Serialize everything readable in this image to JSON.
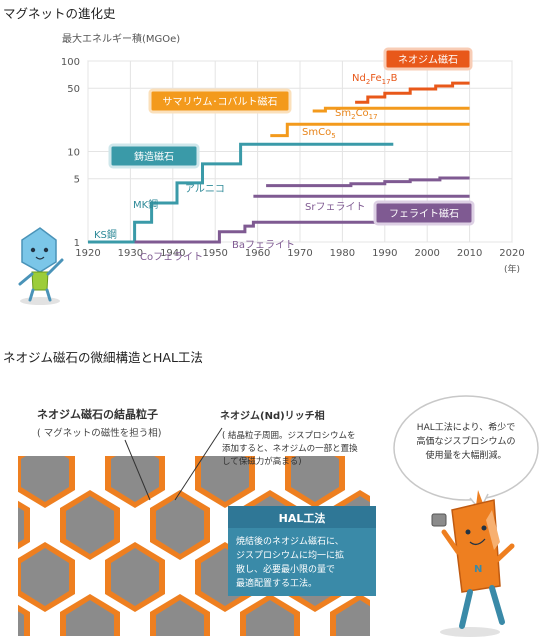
{
  "header": {
    "title": "マグネットの進化史",
    "section2_title": "ネオジム磁石の微細構造とHAL工法"
  },
  "chart_data": {
    "type": "line",
    "ylabel": "最大エネルギー積(MGOe)",
    "xunit": "(年)",
    "yscale": "log",
    "xlim": [
      1920,
      2020
    ],
    "ylim": [
      1,
      100
    ],
    "x_ticks": [
      "1920",
      "1930",
      "1940",
      "1950",
      "1960",
      "1970",
      "1980",
      "1990",
      "2000",
      "2010",
      "2020"
    ],
    "y_ticks": [
      "1",
      "5",
      "10",
      "50",
      "100"
    ],
    "grid": true,
    "legend_boxes": [
      {
        "label": "鋳造磁石",
        "color": "#3a9aa8"
      },
      {
        "label": "サマリウム･コバルト磁石",
        "color": "#f39a1c"
      },
      {
        "label": "ネオジム磁石",
        "color": "#e8581a"
      },
      {
        "label": "フェライト磁石",
        "color": "#7f5a92"
      }
    ],
    "series": [
      {
        "name": "KS鋼",
        "color": "#3a9aa8",
        "points": [
          [
            1920,
            1
          ],
          [
            1931,
            1
          ],
          [
            1931,
            1.65
          ],
          [
            1935,
            1.65
          ],
          [
            1935,
            2.7
          ],
          [
            1941,
            2.7
          ],
          [
            1941,
            4.5
          ],
          [
            1947,
            4.5
          ],
          [
            1947,
            7.3
          ],
          [
            1956,
            7.3
          ],
          [
            1956,
            12
          ],
          [
            1992,
            12
          ]
        ]
      },
      {
        "name": "Coフェライト",
        "color": "#7f5a92",
        "points": [
          [
            1931,
            1
          ],
          [
            1951,
            1
          ],
          [
            1951,
            1.3
          ],
          [
            1957,
            1.3
          ],
          [
            1957,
            1.5
          ],
          [
            1959,
            1.5
          ],
          [
            1959,
            1.65
          ],
          [
            2010,
            1.65
          ]
        ]
      },
      {
        "name": "Baフェライト",
        "color": "#7f5a92",
        "points": [
          [
            1959,
            3.2
          ],
          [
            2010,
            3.2
          ]
        ]
      },
      {
        "name": "Srフェライト",
        "color": "#7f5a92",
        "points": [
          [
            1962,
            4.2
          ],
          [
            1982,
            4.2
          ],
          [
            1982,
            4.4
          ],
          [
            1990,
            4.4
          ],
          [
            1990,
            4.65
          ],
          [
            1996,
            4.65
          ],
          [
            1996,
            4.85
          ],
          [
            2003,
            4.85
          ],
          [
            2003,
            5.1
          ],
          [
            2010,
            5.1
          ]
        ]
      },
      {
        "name": "SmCo5",
        "color": "#f39a1c",
        "points": [
          [
            1963,
            15
          ],
          [
            1967,
            15
          ],
          [
            1967,
            20
          ],
          [
            2010,
            20
          ]
        ]
      },
      {
        "name": "Sm2Co17",
        "color": "#f39a1c",
        "points": [
          [
            1973,
            28
          ],
          [
            1976,
            28
          ],
          [
            1976,
            30
          ],
          [
            2010,
            30
          ]
        ]
      },
      {
        "name": "Nd2Fe17B",
        "color": "#e8581a",
        "points": [
          [
            1983,
            35
          ],
          [
            1986,
            35
          ],
          [
            1986,
            40
          ],
          [
            1990,
            40
          ],
          [
            1990,
            44
          ],
          [
            1996,
            44
          ],
          [
            1996,
            49
          ],
          [
            2002,
            49
          ],
          [
            2002,
            53
          ],
          [
            2006,
            53
          ],
          [
            2006,
            57
          ],
          [
            2010,
            57
          ]
        ]
      }
    ],
    "annotations": {
      "ks": "KS鋼",
      "mk": "MK鋼",
      "alnico": "アルニコ",
      "co_ferrite": "Coフェライト",
      "ba_ferrite": "Baフェライト",
      "sr_ferrite": "Srフェライト",
      "smco5_a": "SmCo",
      "smco5_b": "5",
      "sm2co17_a": "Sm",
      "sm2co17_b": "2",
      "sm2co17_c": "Co",
      "sm2co17_d": "17",
      "ndfeb_a": "Nd",
      "ndfeb_b": "2",
      "ndfeb_c": "Fe",
      "ndfeb_d": "17",
      "ndfeb_e": "B"
    }
  },
  "diagram": {
    "grain_label": "ネオジム磁石の結晶粒子",
    "grain_sub": "( マグネットの磁性を担う相)",
    "rich_label": "ネオジム(Nd)リッチ相",
    "rich_note": [
      "( 結晶粒子周囲。ジスプロシウムを",
      "添加すると、ネオジムの一部と置換",
      "して保磁力が高まる)"
    ],
    "hal_title": "HAL工法",
    "hal_text": [
      "焼結後のネオジム磁石に、",
      "ジスプロシウムに均一に拡",
      "散し、必要最小限の量で",
      "最適配置する工法。"
    ],
    "bubble_text": [
      "HAL工法により、希少で",
      "高価なジスプロシウムの",
      "使用量を大幅削減。"
    ]
  }
}
